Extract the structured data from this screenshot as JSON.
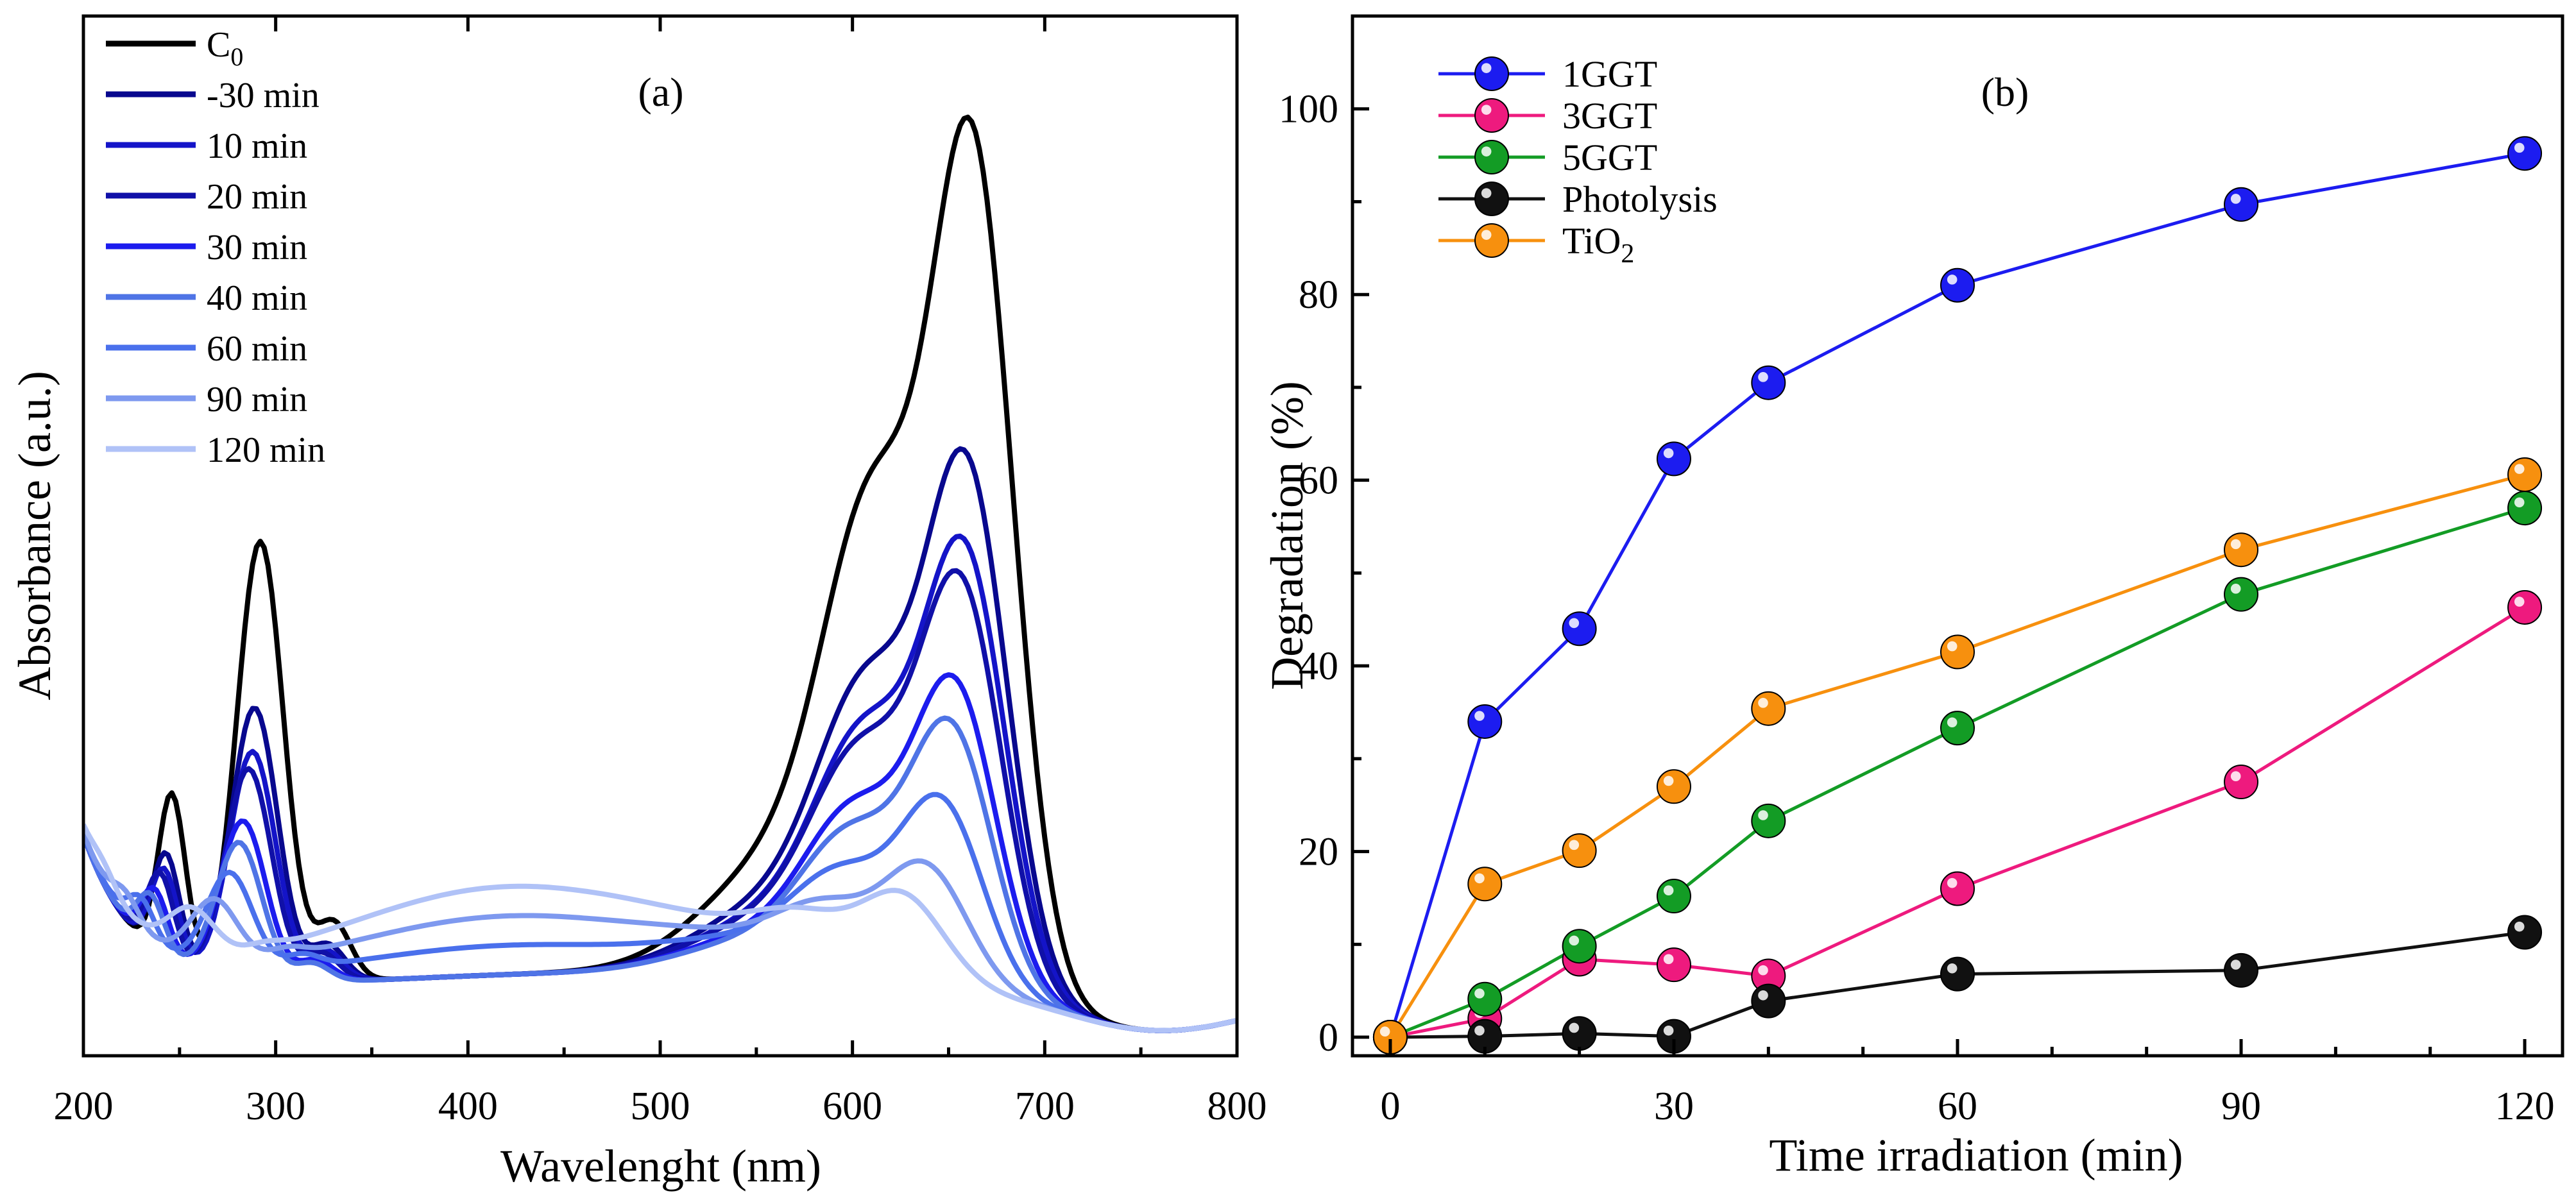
{
  "chart_data": [
    {
      "panel": "(a)",
      "type": "line",
      "title": "",
      "xlabel": "Wavelenght (nm)",
      "ylabel": "Absorbance (a.u.)",
      "xlim": [
        200,
        800
      ],
      "ylim": [
        0,
        1
      ],
      "xticks": [
        "200",
        "300",
        "400",
        "500",
        "600",
        "700",
        "800"
      ],
      "yticks_shown": false,
      "legend_location": "top-left",
      "series": [
        {
          "name": "C",
          "subscript": "0",
          "color": "#000000",
          "scale": 1.0,
          "shift": 0
        },
        {
          "name": "-30 min",
          "color": "#08088e",
          "scale": 0.62,
          "shift": -3
        },
        {
          "name": "10 min",
          "color": "#1414c8",
          "scale": 0.52,
          "shift": -4
        },
        {
          "name": "20 min",
          "color": "#1010a8",
          "scale": 0.48,
          "shift": -6
        },
        {
          "name": "30 min",
          "color": "#1c1cee",
          "scale": 0.36,
          "shift": -9
        },
        {
          "name": "40 min",
          "color": "#4f74e6",
          "scale": 0.31,
          "shift": -11
        },
        {
          "name": "60 min",
          "color": "#4a70ec",
          "scale": 0.22,
          "shift": -16
        },
        {
          "name": "90 min",
          "color": "#7e99ef",
          "scale": 0.14,
          "shift": -24
        },
        {
          "name": "120 min",
          "color": "#b0c2f7",
          "scale": 0.1,
          "shift": -36
        }
      ]
    },
    {
      "panel": "(b)",
      "type": "line",
      "title": "",
      "xlabel": "Time irradiation (min)",
      "ylabel": "Degradation (%)",
      "xlim": [
        -4,
        124
      ],
      "ylim": [
        -2,
        110
      ],
      "xticks": [
        0,
        30,
        60,
        90,
        120
      ],
      "yticks": [
        0,
        20,
        40,
        60,
        80,
        100
      ],
      "legend_location": "top-left",
      "x": [
        0,
        10,
        20,
        30,
        40,
        60,
        90,
        120
      ],
      "series": [
        {
          "name": "1GGT",
          "color": "#1c1cf0",
          "values": [
            0,
            34,
            44,
            62.3,
            70.5,
            81,
            89.7,
            95.2
          ]
        },
        {
          "name": "3GGT",
          "color": "#ee1a7e",
          "values": [
            0,
            2,
            8.4,
            7.8,
            6.6,
            16,
            27.5,
            46.3
          ]
        },
        {
          "name": "5GGT",
          "color": "#139c25",
          "values": [
            0,
            4.1,
            9.8,
            15.2,
            23.3,
            33.3,
            47.7,
            57
          ]
        },
        {
          "name": "Photolysis",
          "color": "#111111",
          "values": [
            0,
            0.1,
            0.4,
            0.1,
            3.9,
            6.8,
            7.2,
            11.3
          ]
        },
        {
          "name": "TiO",
          "subscript": "2",
          "color": "#f7900e",
          "values": [
            0,
            16.5,
            20.1,
            27,
            35.4,
            41.5,
            52.5,
            60.6
          ]
        }
      ]
    }
  ]
}
